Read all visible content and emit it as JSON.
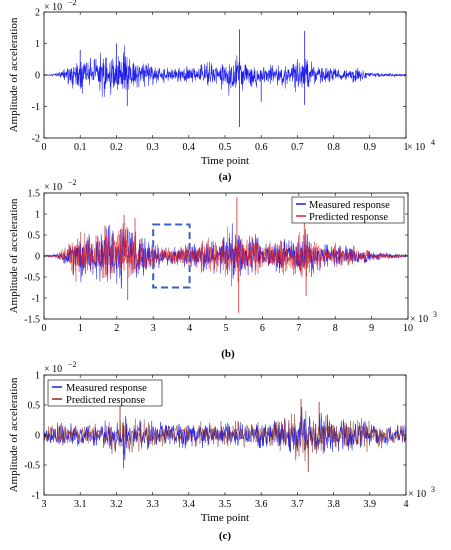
{
  "colors": {
    "measured": "#1f1ff0",
    "predicted": "#d8282a",
    "predicted_dark": "#8a2a1a",
    "box": "#3a5fc8"
  },
  "chart_data": [
    {
      "panel": "a",
      "type": "line",
      "caption": "(a)",
      "xlabel": "Time point",
      "ylabel": "Amplitude of acceleration",
      "y_exponent": "× 10^-2",
      "x_exponent": "× 10^4",
      "xlim": [
        0,
        1
      ],
      "ylim": [
        -2,
        2
      ],
      "xticks": [
        "0",
        "0.1",
        "0.2",
        "0.3",
        "0.4",
        "0.5",
        "0.6",
        "0.7",
        "0.8",
        "0.9",
        "1"
      ],
      "yticks": [
        "-2",
        "-1",
        "0",
        "1",
        "2"
      ],
      "series": [
        {
          "color": "measured",
          "envelope": {
            "x": [
              0,
              0.03,
              0.06,
              0.08,
              0.1,
              0.12,
              0.14,
              0.16,
              0.18,
              0.2,
              0.22,
              0.24,
              0.26,
              0.28,
              0.3,
              0.32,
              0.35,
              0.38,
              0.4,
              0.42,
              0.45,
              0.48,
              0.5,
              0.52,
              0.55,
              0.58,
              0.6,
              0.62,
              0.65,
              0.68,
              0.7,
              0.72,
              0.75,
              0.78,
              0.8,
              0.82,
              0.85,
              0.88,
              0.9,
              0.95,
              1.0
            ],
            "amp": [
              0.02,
              0.05,
              0.25,
              0.6,
              0.75,
              0.55,
              0.6,
              0.8,
              0.9,
              0.8,
              1.0,
              0.7,
              0.6,
              0.55,
              0.35,
              0.3,
              0.25,
              0.3,
              0.4,
              0.35,
              0.55,
              0.4,
              0.7,
              0.9,
              0.5,
              0.6,
              0.35,
              0.45,
              0.5,
              0.45,
              0.7,
              0.75,
              0.4,
              0.3,
              0.35,
              0.25,
              0.3,
              0.2,
              0.12,
              0.08,
              0.05
            ]
          },
          "spikes": [
            {
              "x": 0.1,
              "y": 0.8
            },
            {
              "x": 0.2,
              "y": 1.0
            },
            {
              "x": 0.23,
              "y": -0.98
            },
            {
              "x": 0.54,
              "y": 1.45
            },
            {
              "x": 0.54,
              "y": -1.65
            },
            {
              "x": 0.72,
              "y": 1.4
            },
            {
              "x": 0.72,
              "y": -0.95
            },
            {
              "x": 0.6,
              "y": -0.85
            }
          ]
        }
      ]
    },
    {
      "panel": "b",
      "type": "line",
      "caption": "(b)",
      "xlabel": "",
      "ylabel": "Amplitude of acceleration",
      "y_exponent": "× 10^-2",
      "x_exponent": "× 10^3",
      "xlim": [
        0,
        10
      ],
      "ylim": [
        -1.5,
        1.5
      ],
      "xticks": [
        "0",
        "1",
        "2",
        "3",
        "4",
        "5",
        "6",
        "7",
        "8",
        "9",
        "10"
      ],
      "yticks": [
        "-1.5",
        "-1",
        "-0.5",
        "0",
        "0.5",
        "1",
        "1.5"
      ],
      "legend": {
        "position": "top-right",
        "entries": [
          {
            "label": "Measured response",
            "color": "measured"
          },
          {
            "label": "Predicted response",
            "color": "predicted"
          }
        ]
      },
      "highlight_box": {
        "x": [
          3,
          4
        ],
        "y": [
          -0.75,
          0.75
        ]
      },
      "series": [
        {
          "name": "Measured response",
          "color": "measured",
          "envelope": {
            "x": [
              0,
              0.3,
              0.6,
              0.8,
              1.0,
              1.2,
              1.4,
              1.6,
              1.8,
              2.0,
              2.2,
              2.4,
              2.6,
              2.8,
              3.0,
              3.2,
              3.5,
              3.8,
              4.0,
              4.2,
              4.5,
              4.8,
              5.0,
              5.2,
              5.5,
              5.8,
              6.0,
              6.2,
              6.5,
              6.8,
              7.0,
              7.2,
              7.5,
              7.8,
              8.0,
              8.2,
              8.5,
              8.8,
              9.0,
              9.5,
              10.0
            ],
            "amp": [
              0.02,
              0.05,
              0.25,
              0.6,
              0.75,
              0.55,
              0.6,
              0.8,
              0.9,
              0.8,
              1.0,
              0.7,
              0.6,
              0.55,
              0.35,
              0.3,
              0.25,
              0.3,
              0.4,
              0.35,
              0.55,
              0.4,
              0.7,
              0.9,
              0.5,
              0.6,
              0.35,
              0.45,
              0.5,
              0.45,
              0.7,
              0.75,
              0.4,
              0.3,
              0.35,
              0.25,
              0.3,
              0.2,
              0.12,
              0.08,
              0.05
            ]
          }
        },
        {
          "name": "Predicted response",
          "color": "predicted",
          "envelope": {
            "x": [
              0,
              0.3,
              0.6,
              0.8,
              1.0,
              1.2,
              1.4,
              1.6,
              1.8,
              2.0,
              2.2,
              2.4,
              2.6,
              2.8,
              3.0,
              3.2,
              3.5,
              3.8,
              4.0,
              4.2,
              4.5,
              4.8,
              5.0,
              5.2,
              5.5,
              5.8,
              6.0,
              6.2,
              6.5,
              6.8,
              7.0,
              7.2,
              7.5,
              7.8,
              8.0,
              8.2,
              8.5,
              8.8,
              9.0,
              9.5,
              10.0
            ],
            "amp": [
              0.02,
              0.05,
              0.25,
              0.6,
              0.75,
              0.55,
              0.6,
              0.8,
              0.9,
              0.8,
              1.0,
              0.7,
              0.6,
              0.55,
              0.35,
              0.3,
              0.25,
              0.3,
              0.4,
              0.35,
              0.55,
              0.4,
              0.7,
              0.9,
              0.5,
              0.6,
              0.35,
              0.45,
              0.5,
              0.45,
              0.7,
              0.75,
              0.4,
              0.3,
              0.35,
              0.25,
              0.3,
              0.2,
              0.12,
              0.08,
              0.05
            ]
          },
          "spikes": [
            {
              "x": 2.2,
              "y": 0.98
            },
            {
              "x": 2.3,
              "y": -1.05
            },
            {
              "x": 5.3,
              "y": 1.4
            },
            {
              "x": 5.35,
              "y": -1.35
            },
            {
              "x": 7.15,
              "y": 1.15
            },
            {
              "x": 7.2,
              "y": -0.95
            },
            {
              "x": 2.5,
              "y": 0.9
            }
          ]
        }
      ]
    },
    {
      "panel": "c",
      "type": "line",
      "caption": "(c)",
      "xlabel": "Time point",
      "ylabel": "Amplitude of acceleration",
      "y_exponent": "× 10^-2",
      "x_exponent": "× 10^3",
      "xlim": [
        3,
        4
      ],
      "ylim": [
        -1,
        1
      ],
      "xticks": [
        "3",
        "3.1",
        "3.2",
        "3.3",
        "3.4",
        "3.5",
        "3.6",
        "3.7",
        "3.8",
        "3.9",
        "4"
      ],
      "yticks": [
        "-1",
        "-0.5",
        "0",
        "0.5",
        "1"
      ],
      "legend": {
        "position": "top-left",
        "entries": [
          {
            "label": "Measured response",
            "color": "measured"
          },
          {
            "label": "Predicted response",
            "color": "predicted_dark"
          }
        ]
      },
      "series": [
        {
          "name": "Measured response",
          "color": "measured",
          "envelope": {
            "x": [
              3.0,
              3.05,
              3.1,
              3.15,
              3.2,
              3.22,
              3.25,
              3.3,
              3.35,
              3.4,
              3.45,
              3.5,
              3.55,
              3.6,
              3.65,
              3.7,
              3.72,
              3.75,
              3.8,
              3.85,
              3.9,
              3.95,
              4.0
            ],
            "amp": [
              0.2,
              0.25,
              0.22,
              0.25,
              0.35,
              0.5,
              0.3,
              0.25,
              0.25,
              0.28,
              0.25,
              0.3,
              0.25,
              0.28,
              0.35,
              0.5,
              0.55,
              0.45,
              0.35,
              0.3,
              0.3,
              0.22,
              0.2
            ]
          }
        },
        {
          "name": "Predicted response",
          "color": "predicted_dark",
          "envelope": {
            "x": [
              3.0,
              3.05,
              3.1,
              3.15,
              3.2,
              3.22,
              3.25,
              3.3,
              3.35,
              3.4,
              3.45,
              3.5,
              3.55,
              3.6,
              3.65,
              3.7,
              3.72,
              3.75,
              3.8,
              3.85,
              3.9,
              3.95,
              4.0
            ],
            "amp": [
              0.2,
              0.25,
              0.22,
              0.25,
              0.35,
              0.5,
              0.3,
              0.25,
              0.25,
              0.28,
              0.25,
              0.3,
              0.25,
              0.28,
              0.35,
              0.5,
              0.55,
              0.45,
              0.35,
              0.3,
              0.3,
              0.22,
              0.2
            ]
          },
          "spikes": [
            {
              "x": 3.21,
              "y": 0.52
            },
            {
              "x": 3.22,
              "y": -0.55
            },
            {
              "x": 3.71,
              "y": 0.6
            },
            {
              "x": 3.73,
              "y": -0.62
            },
            {
              "x": 3.76,
              "y": 0.55
            }
          ]
        }
      ]
    }
  ]
}
